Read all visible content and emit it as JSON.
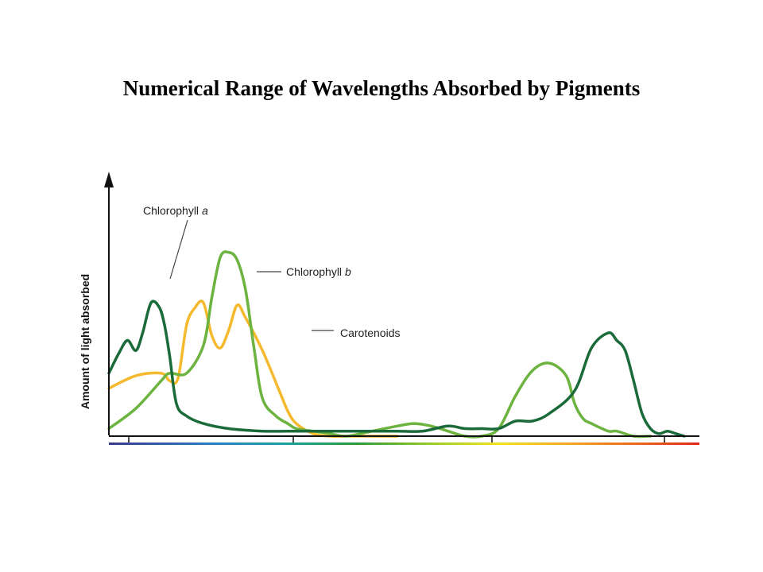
{
  "title": "Numerical Range of Wavelengths Absorbed by Pigments",
  "colors": {
    "chlorophyll_a": "#1b6b3a",
    "chlorophyll_b": "#6cb33f",
    "carotenoids": "#f5b92e"
  },
  "chart_data": {
    "type": "line",
    "title": "Numerical Range of Wavelengths Absorbed by Pigments",
    "xlabel": "",
    "ylabel": "Amount of light absorbed",
    "xlim": [
      380,
      730
    ],
    "ylim": [
      0,
      1
    ],
    "x_ticks_count": 4,
    "grid": false,
    "legend": "inline labels with leader lines",
    "series": [
      {
        "name": "Chlorophyll a",
        "color": "#1b6b3a",
        "x": [
          380,
          386,
          391,
          396,
          400,
          405,
          410,
          413,
          416,
          420,
          426,
          436,
          451,
          471,
          486,
          511,
          531,
          551,
          566,
          581,
          591,
          601,
          611,
          621,
          631,
          641,
          656,
          666,
          676,
          681,
          686,
          691,
          696,
          701,
          706,
          711,
          716,
          721
        ],
        "y": [
          0.25,
          0.33,
          0.38,
          0.34,
          0.41,
          0.53,
          0.51,
          0.44,
          0.32,
          0.13,
          0.08,
          0.05,
          0.03,
          0.02,
          0.02,
          0.02,
          0.02,
          0.02,
          0.02,
          0.04,
          0.03,
          0.03,
          0.03,
          0.06,
          0.06,
          0.09,
          0.18,
          0.35,
          0.41,
          0.38,
          0.34,
          0.22,
          0.09,
          0.03,
          0.01,
          0.02,
          0.01,
          0.0
        ]
      },
      {
        "name": "Chlorophyll b",
        "color": "#6cb33f",
        "x": [
          380,
          396,
          411,
          416,
          426,
          436,
          441,
          446,
          451,
          456,
          461,
          466,
          471,
          479,
          486,
          491,
          501,
          511,
          521,
          536,
          551,
          561,
          571,
          581,
          591,
          601,
          611,
          621,
          631,
          641,
          651,
          656,
          661,
          666,
          676,
          681,
          691,
          701
        ],
        "y": [
          0.03,
          0.11,
          0.22,
          0.25,
          0.25,
          0.36,
          0.55,
          0.71,
          0.73,
          0.7,
          0.58,
          0.35,
          0.15,
          0.08,
          0.05,
          0.03,
          0.02,
          0.01,
          0.0,
          0.02,
          0.04,
          0.05,
          0.04,
          0.02,
          0.0,
          0.0,
          0.03,
          0.16,
          0.26,
          0.29,
          0.24,
          0.13,
          0.07,
          0.05,
          0.02,
          0.02,
          0.0,
          0.0
        ]
      },
      {
        "name": "Carotenoids",
        "color": "#f5b92e",
        "x": [
          380,
          396,
          411,
          416,
          421,
          426,
          431,
          436,
          441,
          446,
          451,
          456,
          461,
          471,
          481,
          486,
          491,
          501,
          511,
          521,
          526,
          531,
          536,
          541,
          546,
          551
        ],
        "y": [
          0.19,
          0.24,
          0.25,
          0.22,
          0.23,
          0.44,
          0.51,
          0.53,
          0.4,
          0.35,
          0.42,
          0.52,
          0.47,
          0.34,
          0.18,
          0.1,
          0.05,
          0.01,
          0.0,
          0.0,
          0.0,
          0.0,
          0.0,
          0.0,
          0.0,
          0.0
        ]
      }
    ]
  }
}
